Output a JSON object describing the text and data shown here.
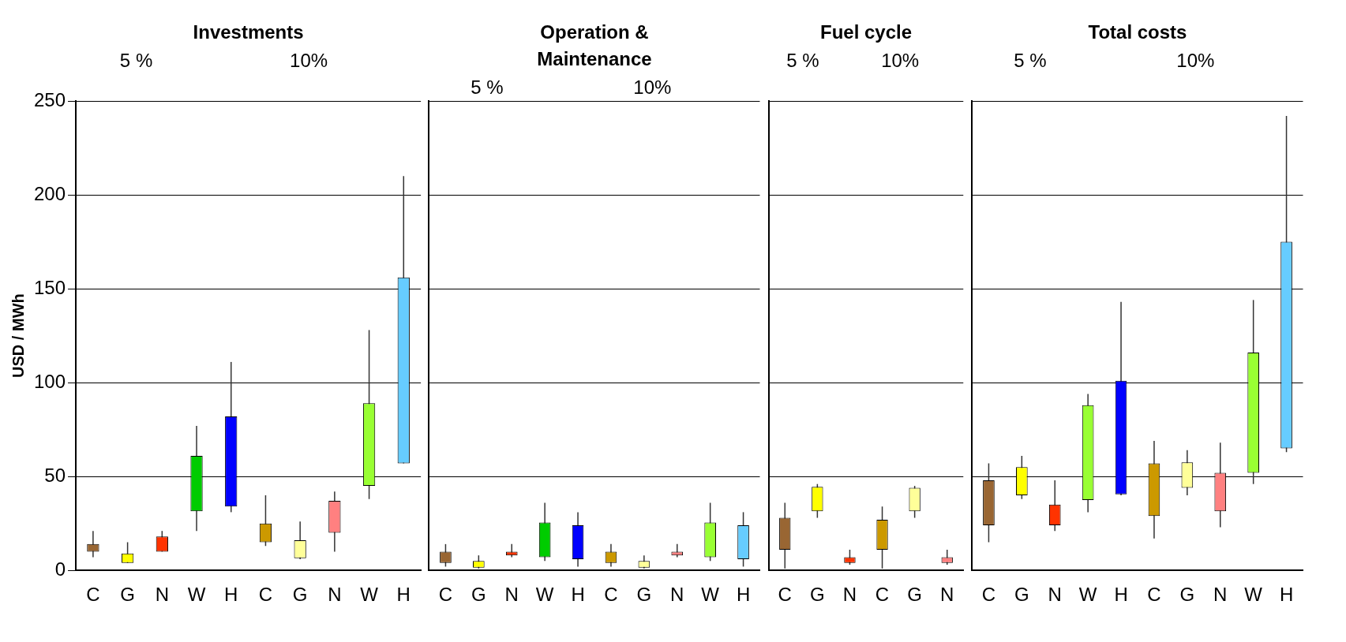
{
  "chart_data": [
    {
      "type": "bar",
      "title": "Investments",
      "ylabel": "USD / MWh",
      "annotations": [
        "5 %",
        "10%"
      ],
      "categories": [
        "C",
        "G",
        "N",
        "W",
        "H",
        "C",
        "G",
        "N",
        "W",
        "H"
      ],
      "base": [
        10,
        4,
        10,
        31.5,
        34,
        15,
        6.5,
        20,
        45,
        57
      ],
      "values": [
        4,
        5,
        8,
        29.5,
        48,
        10,
        9.5,
        17,
        44,
        99
      ],
      "errors": [
        [
          7,
          21
        ],
        [
          4,
          15
        ],
        [
          10,
          21
        ],
        [
          21,
          77
        ],
        [
          31,
          111
        ],
        [
          13,
          40
        ],
        [
          6,
          26
        ],
        [
          10,
          42
        ],
        [
          38,
          128
        ],
        [
          57,
          210
        ]
      ],
      "colors": [
        "#996633",
        "#ffff00",
        "#ff3300",
        "#00cc00",
        "#0000ff",
        "#cc9900",
        "#ffff99",
        "#ff8080",
        "#99ff33",
        "#66ccff"
      ],
      "ylim": [
        0,
        250
      ],
      "yticks": [
        0,
        50,
        100,
        150,
        200,
        250
      ],
      "grid": "y"
    },
    {
      "type": "bar",
      "title": "Operation & Maintenance",
      "annotations": [
        "5 %",
        "10%"
      ],
      "categories": [
        "C",
        "G",
        "N",
        "W",
        "H",
        "C",
        "G",
        "N",
        "W",
        "H"
      ],
      "base": [
        4,
        1.5,
        8,
        7,
        6,
        4,
        1.5,
        8,
        7,
        6
      ],
      "values": [
        6,
        3.5,
        2,
        18.5,
        18,
        6,
        3.5,
        2,
        18.5,
        18
      ],
      "errors": [
        [
          2,
          14
        ],
        [
          1,
          8
        ],
        [
          7,
          14
        ],
        [
          5,
          36
        ],
        [
          2,
          31
        ],
        [
          2,
          14
        ],
        [
          1,
          8
        ],
        [
          7,
          14
        ],
        [
          5,
          36
        ],
        [
          2,
          31
        ]
      ],
      "colors": [
        "#996633",
        "#ffff00",
        "#ff3300",
        "#00cc00",
        "#0000ff",
        "#cc9900",
        "#ffff99",
        "#ff8080",
        "#99ff33",
        "#66ccff"
      ],
      "ylim": [
        0,
        250
      ],
      "yticks": [
        0,
        50,
        100,
        150,
        200,
        250
      ],
      "grid": "y",
      "tick_labels": "x"
    },
    {
      "type": "bar",
      "title": "Fuel cycle",
      "annotations": [
        "5 %",
        "10%"
      ],
      "categories": [
        "C",
        "G",
        "N",
        "C",
        "G",
        "N"
      ],
      "base": [
        11,
        31.5,
        4,
        11,
        31.5,
        4
      ],
      "values": [
        17,
        13,
        3,
        16,
        12.5,
        3
      ],
      "errors": [
        [
          1,
          36
        ],
        [
          28,
          46
        ],
        [
          3,
          11
        ],
        [
          1,
          34
        ],
        [
          28,
          45
        ],
        [
          3,
          11
        ]
      ],
      "colors": [
        "#996633",
        "#ffff00",
        "#ff3300",
        "#cc9900",
        "#ffff99",
        "#ff8080"
      ],
      "ylim": [
        0,
        250
      ],
      "yticks": [
        0,
        50,
        100,
        150,
        200,
        250
      ],
      "grid": "y",
      "tick_labels": "x"
    },
    {
      "type": "bar",
      "title": "Total costs",
      "annotations": [
        "5 %",
        "10%"
      ],
      "categories": [
        "C",
        "G",
        "N",
        "W",
        "H",
        "C",
        "G",
        "N",
        "W",
        "H"
      ],
      "base": [
        24,
        40,
        24,
        37.5,
        40.5,
        29,
        44,
        31.5,
        52,
        65
      ],
      "values": [
        24,
        15,
        11,
        50.5,
        60.5,
        28,
        13.5,
        20.5,
        64,
        110
      ],
      "errors": [
        [
          15,
          57
        ],
        [
          38,
          61
        ],
        [
          21,
          48
        ],
        [
          31,
          94
        ],
        [
          40,
          143
        ],
        [
          17,
          69
        ],
        [
          40,
          64
        ],
        [
          23,
          68
        ],
        [
          46,
          144
        ],
        [
          63,
          242
        ]
      ],
      "colors": [
        "#996633",
        "#ffff00",
        "#ff3300",
        "#99ff33",
        "#0000ff",
        "#cc9900",
        "#ffff99",
        "#ff8080",
        "#99ff33",
        "#66ccff"
      ],
      "ylim": [
        0,
        250
      ],
      "yticks": [
        0,
        50,
        100,
        150,
        200,
        250
      ],
      "grid": "y",
      "tick_labels": "x"
    }
  ]
}
